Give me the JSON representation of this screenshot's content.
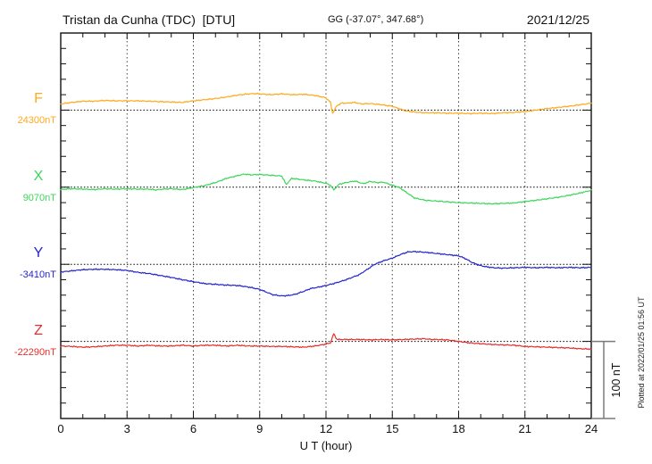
{
  "header": {
    "station_title": "Tristan da Cunha (TDC)  [DTU]",
    "gg_coords": "GG (-37.07°, 347.68°)",
    "date": "2021/12/25"
  },
  "footer_note": "Plotted at 2022/01/25 01:56 UT",
  "chart_data": {
    "type": "line",
    "title": "Tristan da Cunha (TDC)  [DTU]",
    "subtitle": "GG (-37.07°, 347.68°)",
    "date": "2021/12/25",
    "xlabel": "U T (hour)",
    "x_range": [
      0,
      24
    ],
    "x_ticks": [
      0,
      3,
      6,
      9,
      12,
      15,
      18,
      21,
      24
    ],
    "x_minor_tick_step_hours": 1,
    "y_minor_tick_nT": 20,
    "baseline_spacing_nT": 100,
    "grid": "dotted vertical lines every 3 h, dotted horizontal baseline per trace",
    "legend_position": "left margin channel labels",
    "scale_bar": {
      "label": "100 nT",
      "nT": 100
    },
    "units_note": "points are [UT hour, offset in nT from channel baseline_nT]",
    "series": [
      {
        "name": "F",
        "color": "#FFA91C",
        "baseline_nT": 24300,
        "baseline_label": "24300nT",
        "points": [
          [
            0,
            8
          ],
          [
            0.5,
            10
          ],
          [
            1,
            11.5
          ],
          [
            1.5,
            11.5
          ],
          [
            2,
            12.5
          ],
          [
            2.5,
            12
          ],
          [
            3,
            12
          ],
          [
            3.5,
            12
          ],
          [
            4,
            11.5
          ],
          [
            4.5,
            11
          ],
          [
            5,
            10.5
          ],
          [
            5.5,
            10
          ],
          [
            6,
            12
          ],
          [
            6.5,
            13.5
          ],
          [
            7,
            15
          ],
          [
            7.5,
            17
          ],
          [
            8,
            19.5
          ],
          [
            8.5,
            21
          ],
          [
            8.8,
            21.5
          ],
          [
            9,
            21
          ],
          [
            9.5,
            20
          ],
          [
            10,
            21
          ],
          [
            10.5,
            20
          ],
          [
            11,
            20.5
          ],
          [
            11.5,
            19
          ],
          [
            12,
            16
          ],
          [
            12.2,
            10
          ],
          [
            12.3,
            -4
          ],
          [
            12.5,
            6
          ],
          [
            12.7,
            9
          ],
          [
            13,
            9
          ],
          [
            13.3,
            10
          ],
          [
            13.6,
            8
          ],
          [
            14,
            8.5
          ],
          [
            14.5,
            7
          ],
          [
            15,
            5
          ],
          [
            15.3,
            2
          ],
          [
            15.6,
            -1
          ],
          [
            16,
            -2.5
          ],
          [
            16.5,
            -3.5
          ],
          [
            17,
            -3.5
          ],
          [
            17.5,
            -4
          ],
          [
            18,
            -4
          ],
          [
            18.5,
            -4.5
          ],
          [
            19,
            -4
          ],
          [
            19.5,
            -4.5
          ],
          [
            20,
            -3.5
          ],
          [
            20.5,
            -3
          ],
          [
            21,
            -2
          ],
          [
            21.5,
            0
          ],
          [
            22,
            2
          ],
          [
            22.5,
            3.5
          ],
          [
            23,
            5
          ],
          [
            23.5,
            7
          ],
          [
            24,
            9
          ]
        ]
      },
      {
        "name": "X",
        "color": "#3BD65A",
        "baseline_nT": 9070,
        "baseline_label": "9070nT",
        "points": [
          [
            0,
            -3
          ],
          [
            0.5,
            -2
          ],
          [
            1,
            -2.5
          ],
          [
            1.5,
            -3
          ],
          [
            2,
            -2
          ],
          [
            2.5,
            -2.5
          ],
          [
            3,
            -2
          ],
          [
            3.5,
            -2.5
          ],
          [
            4,
            -2.5
          ],
          [
            4.3,
            -3.5
          ],
          [
            4.6,
            -2.5
          ],
          [
            5,
            -2
          ],
          [
            5.5,
            -3
          ],
          [
            6,
            -0.5
          ],
          [
            6.5,
            2
          ],
          [
            7,
            6
          ],
          [
            7.5,
            11.5
          ],
          [
            8,
            15
          ],
          [
            8.3,
            17
          ],
          [
            8.6,
            16
          ],
          [
            9,
            16.5
          ],
          [
            9.5,
            15.5
          ],
          [
            10,
            14.5
          ],
          [
            10.2,
            3.5
          ],
          [
            10.45,
            11.5
          ],
          [
            11,
            9.5
          ],
          [
            11.5,
            8
          ],
          [
            12,
            5
          ],
          [
            12.2,
            2.5
          ],
          [
            12.35,
            -3.5
          ],
          [
            12.6,
            4
          ],
          [
            13,
            6.5
          ],
          [
            13.3,
            8
          ],
          [
            13.7,
            4.5
          ],
          [
            14,
            7.5
          ],
          [
            14.3,
            6
          ],
          [
            14.6,
            6.5
          ],
          [
            15,
            2.5
          ],
          [
            15.3,
            0
          ],
          [
            15.6,
            -6
          ],
          [
            16,
            -14
          ],
          [
            16.5,
            -17
          ],
          [
            17,
            -18
          ],
          [
            17.5,
            -19
          ],
          [
            18,
            -20
          ],
          [
            18.5,
            -20.5
          ],
          [
            19,
            -21
          ],
          [
            19.5,
            -21.5
          ],
          [
            20,
            -21
          ],
          [
            20.5,
            -20.5
          ],
          [
            21,
            -18.5
          ],
          [
            21.5,
            -17
          ],
          [
            22,
            -15
          ],
          [
            22.5,
            -13
          ],
          [
            23,
            -10.5
          ],
          [
            23.5,
            -7.5
          ],
          [
            24,
            -4
          ]
        ]
      },
      {
        "name": "Y",
        "color": "#2424CE",
        "baseline_nT": -3410,
        "baseline_label": "-3410nT",
        "points": [
          [
            0,
            -10
          ],
          [
            0.5,
            -8.5
          ],
          [
            1,
            -7
          ],
          [
            1.5,
            -6.5
          ],
          [
            2,
            -6.5
          ],
          [
            2.5,
            -7
          ],
          [
            3,
            -8
          ],
          [
            3.5,
            -10.5
          ],
          [
            4,
            -12
          ],
          [
            4.5,
            -14.5
          ],
          [
            5,
            -17
          ],
          [
            5.5,
            -20
          ],
          [
            6,
            -22.5
          ],
          [
            6.5,
            -25
          ],
          [
            7,
            -26
          ],
          [
            7.5,
            -27
          ],
          [
            8,
            -27.5
          ],
          [
            8.5,
            -29.5
          ],
          [
            9,
            -32.5
          ],
          [
            9.3,
            -36
          ],
          [
            9.6,
            -39.5
          ],
          [
            10,
            -41
          ],
          [
            10.3,
            -40.5
          ],
          [
            10.6,
            -39
          ],
          [
            11,
            -35
          ],
          [
            11.3,
            -31.5
          ],
          [
            11.6,
            -30
          ],
          [
            12,
            -27.5
          ],
          [
            12.4,
            -24.5
          ],
          [
            12.7,
            -22
          ],
          [
            13,
            -19
          ],
          [
            13.5,
            -13.5
          ],
          [
            14,
            -4
          ],
          [
            14.2,
            0
          ],
          [
            14.6,
            4.5
          ],
          [
            15,
            8
          ],
          [
            15.4,
            13
          ],
          [
            15.7,
            16
          ],
          [
            16,
            16.5
          ],
          [
            16.3,
            16
          ],
          [
            16.7,
            15
          ],
          [
            17,
            14
          ],
          [
            17.5,
            12.5
          ],
          [
            18,
            11
          ],
          [
            18.3,
            7.5
          ],
          [
            18.6,
            2.5
          ],
          [
            18.9,
            -1
          ],
          [
            19.2,
            -3
          ],
          [
            19.6,
            -4.5
          ],
          [
            20,
            -5
          ],
          [
            20.5,
            -4.5
          ],
          [
            21,
            -4
          ],
          [
            21.5,
            -4.5
          ],
          [
            22,
            -4
          ],
          [
            22.5,
            -4.5
          ],
          [
            23,
            -4
          ],
          [
            23.5,
            -4.5
          ],
          [
            24,
            -4
          ]
        ]
      },
      {
        "name": "Z",
        "color": "#E62E2E",
        "baseline_nT": -22290,
        "baseline_label": "-22290nT",
        "points": [
          [
            0,
            -6
          ],
          [
            0.5,
            -6.5
          ],
          [
            1,
            -7.5
          ],
          [
            1.5,
            -7
          ],
          [
            2,
            -6
          ],
          [
            2.5,
            -5
          ],
          [
            3,
            -5
          ],
          [
            3.5,
            -6
          ],
          [
            4,
            -5
          ],
          [
            4.5,
            -6
          ],
          [
            5,
            -6
          ],
          [
            5.5,
            -5
          ],
          [
            6,
            -6
          ],
          [
            6.5,
            -5
          ],
          [
            7,
            -5
          ],
          [
            7.5,
            -6
          ],
          [
            8,
            -5
          ],
          [
            8.5,
            -6
          ],
          [
            9,
            -6
          ],
          [
            9.5,
            -6.5
          ],
          [
            10,
            -6.5
          ],
          [
            10.5,
            -7
          ],
          [
            11,
            -7.5
          ],
          [
            11.5,
            -6
          ],
          [
            12,
            -3.5
          ],
          [
            12.2,
            -2
          ],
          [
            12.35,
            10
          ],
          [
            12.5,
            2.5
          ],
          [
            13,
            2.5
          ],
          [
            13.5,
            2.5
          ],
          [
            14,
            2
          ],
          [
            14.5,
            2.5
          ],
          [
            15,
            2
          ],
          [
            15.5,
            2.5
          ],
          [
            16,
            3
          ],
          [
            16.4,
            3.5
          ],
          [
            16.8,
            2.5
          ],
          [
            17,
            2.5
          ],
          [
            17.5,
            2
          ],
          [
            18,
            0
          ],
          [
            18.5,
            -2
          ],
          [
            19,
            -3
          ],
          [
            19.5,
            -4
          ],
          [
            20,
            -4.5
          ],
          [
            20.5,
            -5
          ],
          [
            21,
            -6.5
          ],
          [
            21.5,
            -7
          ],
          [
            22,
            -7.5
          ],
          [
            22.5,
            -8
          ],
          [
            23,
            -8.5
          ],
          [
            23.5,
            -9.5
          ],
          [
            24,
            -10
          ]
        ]
      }
    ]
  }
}
